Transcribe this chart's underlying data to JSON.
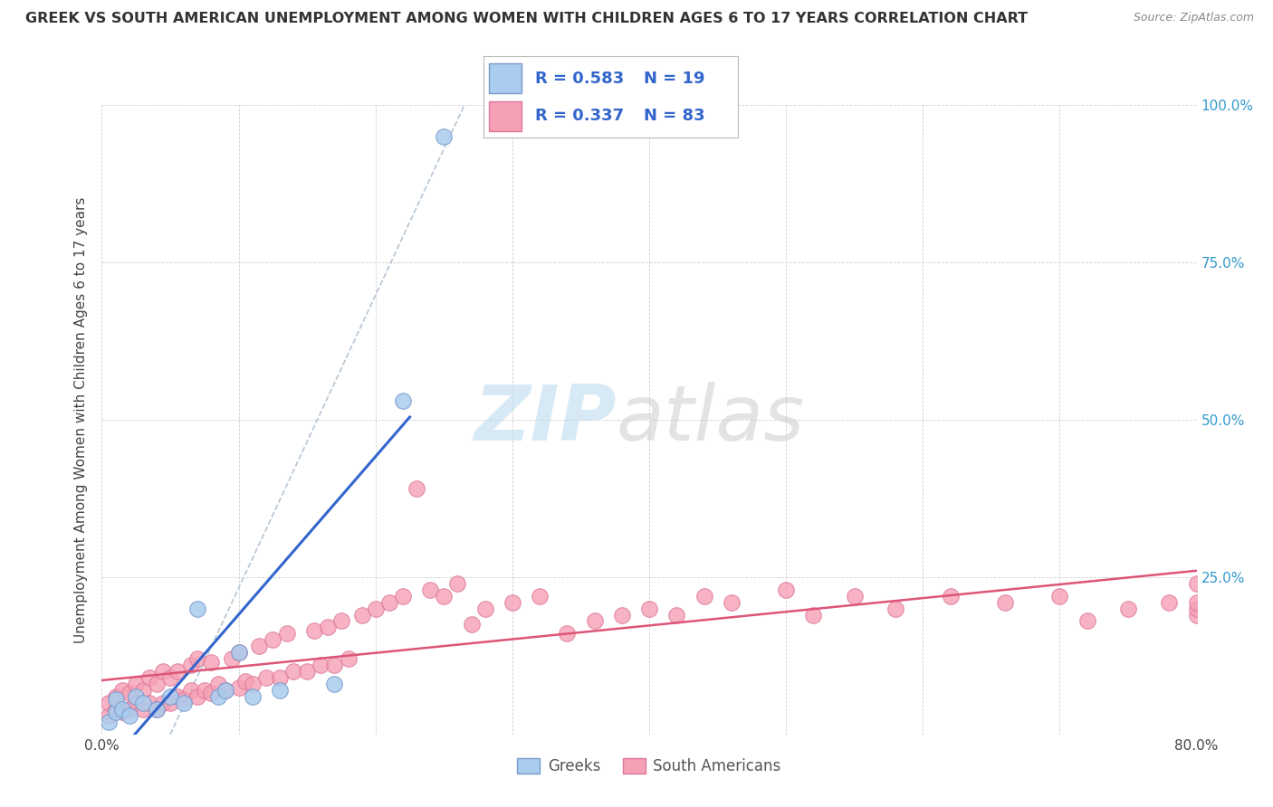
{
  "title": "GREEK VS SOUTH AMERICAN UNEMPLOYMENT AMONG WOMEN WITH CHILDREN AGES 6 TO 17 YEARS CORRELATION CHART",
  "source": "Source: ZipAtlas.com",
  "ylabel": "Unemployment Among Women with Children Ages 6 to 17 years",
  "xlim": [
    0.0,
    0.8
  ],
  "ylim": [
    0.0,
    1.0
  ],
  "background_color": "#ffffff",
  "grid_color": "#d0d0d0",
  "legend_R1": "0.583",
  "legend_N1": "19",
  "legend_R2": "0.337",
  "legend_N2": "83",
  "greek_color": "#aaccee",
  "greek_edge_color": "#7799cc",
  "sa_color": "#f5a0b5",
  "sa_edge_color": "#dd7799",
  "greek_trend_color": "#3366cc",
  "sa_trend_color": "#dd5577",
  "diag_line_color": "#aabbcc",
  "greek_scatter_x": [
    0.005,
    0.01,
    0.01,
    0.015,
    0.02,
    0.025,
    0.03,
    0.04,
    0.05,
    0.06,
    0.07,
    0.085,
    0.09,
    0.1,
    0.11,
    0.13,
    0.17,
    0.22,
    0.25
  ],
  "greek_scatter_y": [
    0.02,
    0.035,
    0.055,
    0.04,
    0.03,
    0.06,
    0.05,
    0.04,
    0.06,
    0.05,
    0.2,
    0.06,
    0.07,
    0.13,
    0.06,
    0.07,
    0.08,
    0.53,
    0.95
  ],
  "sa_scatter_x": [
    0.005,
    0.005,
    0.01,
    0.01,
    0.015,
    0.015,
    0.02,
    0.02,
    0.025,
    0.025,
    0.03,
    0.03,
    0.035,
    0.035,
    0.04,
    0.04,
    0.045,
    0.045,
    0.05,
    0.05,
    0.055,
    0.055,
    0.06,
    0.065,
    0.065,
    0.07,
    0.07,
    0.075,
    0.08,
    0.08,
    0.085,
    0.09,
    0.095,
    0.1,
    0.1,
    0.105,
    0.11,
    0.115,
    0.12,
    0.125,
    0.13,
    0.135,
    0.14,
    0.15,
    0.155,
    0.16,
    0.165,
    0.17,
    0.175,
    0.18,
    0.19,
    0.2,
    0.21,
    0.22,
    0.23,
    0.24,
    0.25,
    0.26,
    0.27,
    0.28,
    0.3,
    0.32,
    0.34,
    0.36,
    0.38,
    0.4,
    0.42,
    0.44,
    0.46,
    0.5,
    0.52,
    0.55,
    0.58,
    0.62,
    0.66,
    0.7,
    0.72,
    0.75,
    0.78,
    0.8,
    0.8,
    0.8,
    0.8
  ],
  "sa_scatter_y": [
    0.03,
    0.05,
    0.04,
    0.06,
    0.035,
    0.07,
    0.04,
    0.065,
    0.05,
    0.08,
    0.04,
    0.07,
    0.05,
    0.09,
    0.04,
    0.08,
    0.05,
    0.1,
    0.05,
    0.09,
    0.06,
    0.1,
    0.055,
    0.07,
    0.11,
    0.06,
    0.12,
    0.07,
    0.065,
    0.115,
    0.08,
    0.07,
    0.12,
    0.075,
    0.13,
    0.085,
    0.08,
    0.14,
    0.09,
    0.15,
    0.09,
    0.16,
    0.1,
    0.1,
    0.165,
    0.11,
    0.17,
    0.11,
    0.18,
    0.12,
    0.19,
    0.2,
    0.21,
    0.22,
    0.39,
    0.23,
    0.22,
    0.24,
    0.175,
    0.2,
    0.21,
    0.22,
    0.16,
    0.18,
    0.19,
    0.2,
    0.19,
    0.22,
    0.21,
    0.23,
    0.19,
    0.22,
    0.2,
    0.22,
    0.21,
    0.22,
    0.18,
    0.2,
    0.21,
    0.19,
    0.2,
    0.21,
    0.24
  ]
}
